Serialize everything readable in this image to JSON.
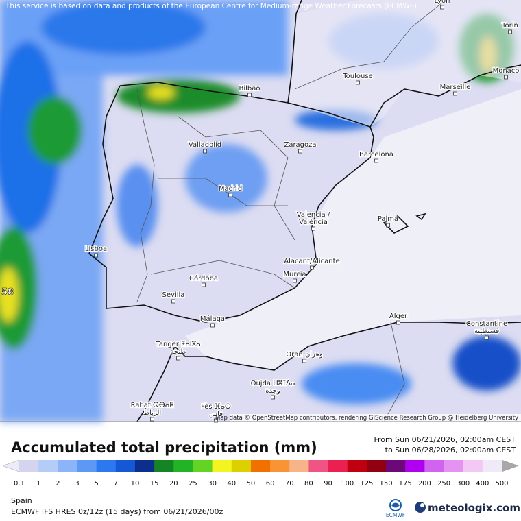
{
  "header": {
    "notice": "This service is based on data and products of the European Centre for Medium-range Weather Forecasts (ECMWF)",
    "attribution": "Map data © OpenStreetMap contributors, rendering GIScience Research Group @ Heidelberg University"
  },
  "map": {
    "edge_value": "58",
    "cities": [
      {
        "label": [
          "Lyon"
        ]
      },
      {
        "label": [
          "Torin"
        ]
      },
      {
        "label": [
          "Monaco"
        ]
      },
      {
        "label": [
          "Toulouse"
        ]
      },
      {
        "label": [
          "Marseille"
        ]
      },
      {
        "label": [
          "Bilbao"
        ]
      },
      {
        "label": [
          "Valladolid"
        ]
      },
      {
        "label": [
          "Zaragoza"
        ]
      },
      {
        "label": [
          "Barcelona"
        ]
      },
      {
        "label": [
          "Madrid"
        ]
      },
      {
        "label": [
          "Valencia /",
          "València"
        ]
      },
      {
        "label": [
          "Palma"
        ]
      },
      {
        "label": [
          "Lisboa"
        ]
      },
      {
        "label": [
          "Alacant/Alicante"
        ]
      },
      {
        "label": [
          "Murcia"
        ]
      },
      {
        "label": [
          "Córdoba"
        ]
      },
      {
        "label": [
          "Sevilla"
        ]
      },
      {
        "label": [
          "Málaga"
        ]
      },
      {
        "label": [
          "Alger"
        ]
      },
      {
        "label": [
          "Constantine",
          "قسنطينة"
        ]
      },
      {
        "label": [
          "Tanger ⵟⴰⵏⴵⴰ",
          "طنجة"
        ]
      },
      {
        "label": [
          "Oran وهران"
        ]
      },
      {
        "label": [
          "Oujda ⵡⵓⵊⴷⴰ",
          "وجدة"
        ]
      },
      {
        "label": [
          "Rabat ⵕⴱⴰⵟ",
          "الرباط"
        ]
      },
      {
        "label": [
          "Fès ⴼⴰⵙ",
          "فاس"
        ]
      }
    ]
  },
  "footer": {
    "title": "Accumulated total precipitation (mm)",
    "from": "From Sun 06/21/2026, 02:00am CEST",
    "to": "to Sun 06/28/2026, 02:00am CEST",
    "region": "Spain",
    "model": "ECMWF IFS HRES 0z/12z (15 days) from 06/21/2026/00z",
    "ecmwf_logo": "ECMWF",
    "brand": "meteologix.com"
  },
  "legend": {
    "values": [
      0.1,
      1,
      2,
      3,
      5,
      7,
      10,
      15,
      20,
      25,
      30,
      40,
      50,
      60,
      70,
      80,
      90,
      100,
      125,
      150,
      175,
      200,
      250,
      300,
      400,
      500
    ],
    "colors": [
      "#d4d4ee",
      "#b4ccf8",
      "#8cb4f8",
      "#5c98f4",
      "#2c78ee",
      "#1458d6",
      "#0c2e8c",
      "#148424",
      "#22b424",
      "#64d424",
      "#f4f420",
      "#dcd000",
      "#f07000",
      "#f89434",
      "#f8b488",
      "#f05484",
      "#ec2050",
      "#c00010",
      "#900010",
      "#6c0878",
      "#b000f0",
      "#d064f0",
      "#e494f0",
      "#f4c8f4",
      "#f0eaf8"
    ],
    "under_color": "#ececf8",
    "over_color": "#a8a8a8"
  }
}
